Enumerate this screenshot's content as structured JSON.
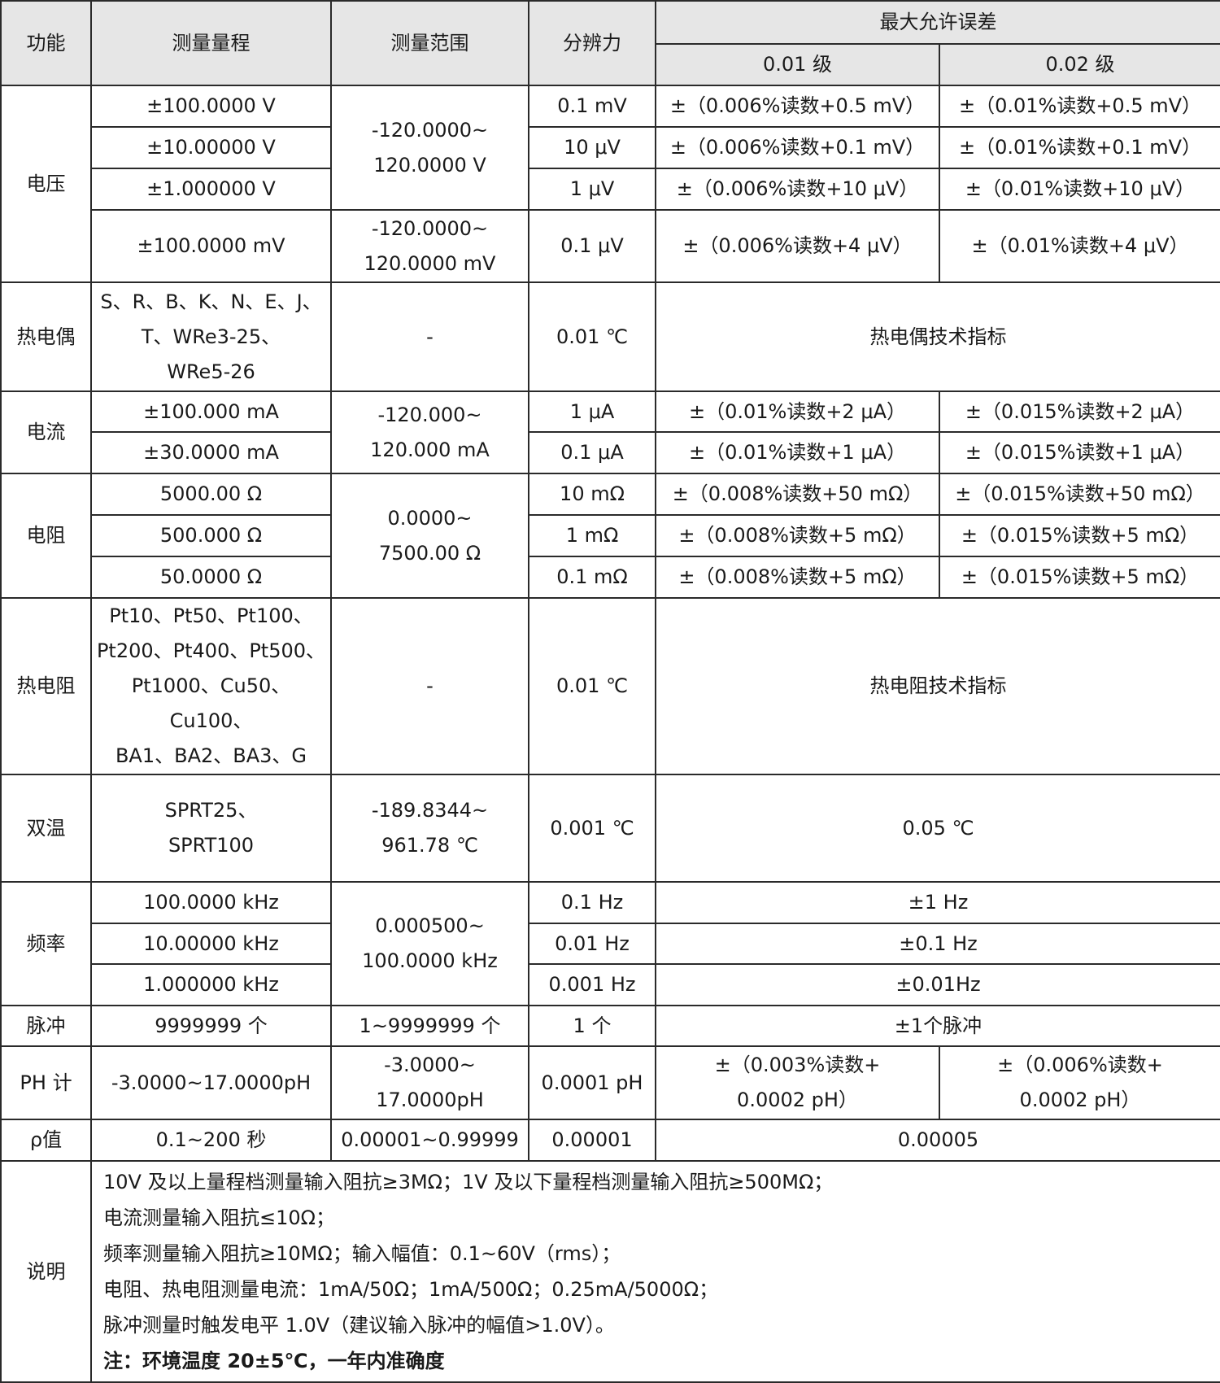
{
  "header": {
    "function": "功能",
    "range_name": "测量量程",
    "measure_range": "测量范围",
    "resolution": "分辨力",
    "max_error": "最大允许误差",
    "grade1": "0.01 级",
    "grade2": "0.02 级"
  },
  "voltage": {
    "label": "电压",
    "r1": "±100.0000 V",
    "r2": "±10.00000 V",
    "r3": "±1.000000 V",
    "r4": "±100.0000 mV",
    "mr1a": "-120.0000~",
    "mr1b": "120.0000 V",
    "mr2a": "-120.0000~",
    "mr2b": "120.0000 mV",
    "res1": "0.1 mV",
    "res2": "10 μV",
    "res3": "1 μV",
    "res4": "0.1 μV",
    "e1a": "±（0.006%读数+0.5 mV）",
    "e1b": "±（0.01%读数+0.5 mV）",
    "e2a": "±（0.006%读数+0.1 mV）",
    "e2b": "±（0.01%读数+0.1 mV）",
    "e3a": "±（0.006%读数+10 μV）",
    "e3b": "±（0.01%读数+10 μV）",
    "e4a": "±（0.006%读数+4 μV）",
    "e4b": "±（0.01%读数+4 μV）"
  },
  "thermocouple": {
    "label": "热电偶",
    "l1": "S、R、B、K、N、E、J、",
    "l2": "T、WRe3-25、",
    "l3": "WRe5-26",
    "range": "-",
    "res": "0.01 ℃",
    "err": "热电偶技术指标"
  },
  "current": {
    "label": "电流",
    "r1": "±100.000 mA",
    "r2": "±30.0000 mA",
    "mra": "-120.000~",
    "mrb": "120.000 mA",
    "res1": "1 μA",
    "res2": "0.1 μA",
    "e1a": "±（0.01%读数+2 μA）",
    "e1b": "±（0.015%读数+2 μA）",
    "e2a": "±（0.01%读数+1 μA）",
    "e2b": "±（0.015%读数+1 μA）"
  },
  "resistance": {
    "label": "电阻",
    "r1": "5000.00 Ω",
    "r2": "500.000 Ω",
    "r3": "50.0000 Ω",
    "mra": "0.0000~",
    "mrb": "7500.00 Ω",
    "res1": "10 mΩ",
    "res2": "1 mΩ",
    "res3": "0.1 mΩ",
    "e1a": "±（0.008%读数+50 mΩ）",
    "e1b": "±（0.015%读数+50 mΩ）",
    "e2a": "±（0.008%读数+5 mΩ）",
    "e2b": "±（0.015%读数+5 mΩ）",
    "e3a": "±（0.008%读数+5 mΩ）",
    "e3b": "±（0.015%读数+5 mΩ）"
  },
  "rtd": {
    "label": "热电阻",
    "l1": "Pt10、Pt50、Pt100、",
    "l2": "Pt200、Pt400、Pt500、",
    "l3": "Pt1000、Cu50、Cu100、",
    "l4": "BA1、BA2、BA3、G",
    "range": "-",
    "res": "0.01 ℃",
    "err": "热电阻技术指标"
  },
  "dual": {
    "label": "双温",
    "l1": "SPRT25、",
    "l2": "SPRT100",
    "mra": "-189.8344~",
    "mrb": "961.78 ℃",
    "res": "0.001 ℃",
    "err": "0.05 ℃"
  },
  "frequency": {
    "label": "频率",
    "r1": "100.0000 kHz",
    "r2": "10.00000 kHz",
    "r3": "1.000000 kHz",
    "mra": "0.000500~",
    "mrb": "100.0000 kHz",
    "res1": "0.1 Hz",
    "res2": "0.01 Hz",
    "res3": "0.001 Hz",
    "e1": "±1 Hz",
    "e2": "±0.1 Hz",
    "e3": "±0.01Hz"
  },
  "pulse": {
    "label": "脉冲",
    "range": "9999999 个",
    "mr": "1~9999999 个",
    "res": "1 个",
    "err": "±1个脉冲"
  },
  "ph": {
    "label": "PH 计",
    "range": "-3.0000~17.0000pH",
    "mra": "-3.0000~",
    "mrb": "17.0000pH",
    "res": "0.0001 pH",
    "e1a": "±（0.003%读数+",
    "e1b": "0.0002 pH）",
    "e2a": "±（0.006%读数+",
    "e2b": "0.0002 pH）"
  },
  "rho": {
    "label": "ρ值",
    "range": "0.1~200 秒",
    "mr": "0.00001~0.99999",
    "res": "0.00001",
    "err": "0.00005"
  },
  "notes": {
    "label": "说明",
    "lines": [
      "10V 及以上量程档测量输入阻抗≥3MΩ；1V 及以下量程档测量输入阻抗≥500MΩ；",
      "电流测量输入阻抗≤10Ω；",
      "频率测量输入阻抗≥10MΩ；输入幅值：0.1~60V（rms）；",
      "电阻、热电阻测量电流：1mA/50Ω；1mA/500Ω；0.25mA/5000Ω；",
      "脉冲测量时触发电平 1.0V（建议输入脉冲的幅值>1.0V）。",
      "注：环境温度 20±5℃，一年内准确度"
    ]
  }
}
